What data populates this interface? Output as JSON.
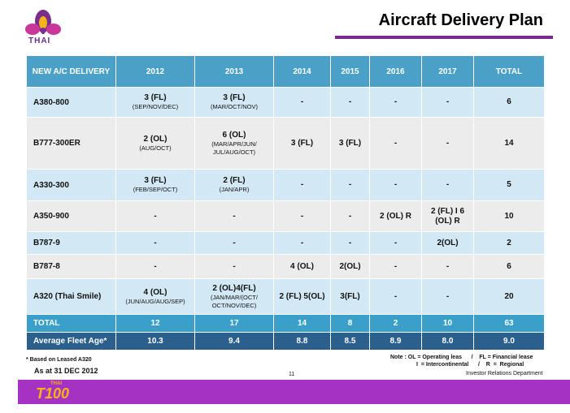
{
  "brand": {
    "logo_text": "THAI",
    "footer_brand": "T100",
    "footer_mini": "THAI"
  },
  "header": {
    "title": "Aircraft Delivery Plan"
  },
  "table": {
    "headers": [
      "NEW A/C DELIVERY",
      "2012",
      "2013",
      "2014",
      "2015",
      "2016",
      "2017",
      "TOTAL"
    ],
    "rows": [
      {
        "label": "A380-800",
        "cells": [
          {
            "main": "3 (FL)",
            "sub": "(SEP/NOV/DEC)"
          },
          {
            "main": "3 (FL)",
            "sub": "(MAR/OCT/NOV)"
          },
          {
            "main": "-",
            "sub": ""
          },
          {
            "main": "-",
            "sub": ""
          },
          {
            "main": "-",
            "sub": ""
          },
          {
            "main": "-",
            "sub": ""
          },
          {
            "main": "6",
            "sub": ""
          }
        ]
      },
      {
        "label": "B777-300ER",
        "cells": [
          {
            "main": "2 (OL)",
            "sub": "(AUG/OCT)"
          },
          {
            "main": "6 (OL)",
            "sub": "(MAR/APR/JUN/ JUL/AUG/OCT)"
          },
          {
            "main": "3 (FL)",
            "sub": ""
          },
          {
            "main": "3 (FL)",
            "sub": ""
          },
          {
            "main": "-",
            "sub": ""
          },
          {
            "main": "-",
            "sub": ""
          },
          {
            "main": "14",
            "sub": ""
          }
        ]
      },
      {
        "label": "A330-300",
        "cells": [
          {
            "main": "3 (FL)",
            "sub": "(FEB/SEP/OCT)"
          },
          {
            "main": "2 (FL)",
            "sub": "(JAN/APR)"
          },
          {
            "main": "-",
            "sub": ""
          },
          {
            "main": "-",
            "sub": ""
          },
          {
            "main": "-",
            "sub": ""
          },
          {
            "main": "-",
            "sub": ""
          },
          {
            "main": "5",
            "sub": ""
          }
        ]
      },
      {
        "label": "A350-900",
        "cells": [
          {
            "main": "-",
            "sub": ""
          },
          {
            "main": "-",
            "sub": ""
          },
          {
            "main": "-",
            "sub": ""
          },
          {
            "main": "-",
            "sub": ""
          },
          {
            "main": "2 (OL) R",
            "sub": ""
          },
          {
            "main": "2 (FL) I 6 (OL) R",
            "sub": ""
          },
          {
            "main": "10",
            "sub": ""
          }
        ]
      },
      {
        "label": "B787-9",
        "cells": [
          {
            "main": "-",
            "sub": ""
          },
          {
            "main": "-",
            "sub": ""
          },
          {
            "main": "-",
            "sub": ""
          },
          {
            "main": "-",
            "sub": ""
          },
          {
            "main": "-",
            "sub": ""
          },
          {
            "main": "2(OL)",
            "sub": ""
          },
          {
            "main": "2",
            "sub": ""
          }
        ]
      },
      {
        "label": "B787-8",
        "cells": [
          {
            "main": "-",
            "sub": ""
          },
          {
            "main": "-",
            "sub": ""
          },
          {
            "main": "4 (OL)",
            "sub": ""
          },
          {
            "main": "2(OL)",
            "sub": ""
          },
          {
            "main": "-",
            "sub": ""
          },
          {
            "main": "-",
            "sub": ""
          },
          {
            "main": "6",
            "sub": ""
          }
        ]
      },
      {
        "label": "A320 (Thai Smile)",
        "cells": [
          {
            "main": "4 (OL)",
            "sub": "(JUN/AUG/AUG/SEP)"
          },
          {
            "main": "2 (OL)4(FL)",
            "sub": "(JAN/MAR/(OCT/ OCT/NOV/DEC)"
          },
          {
            "main": "2 (FL) 5(OL)",
            "sub": ""
          },
          {
            "main": "3(FL)",
            "sub": ""
          },
          {
            "main": "-",
            "sub": ""
          },
          {
            "main": "-",
            "sub": ""
          },
          {
            "main": "20",
            "sub": ""
          }
        ]
      }
    ],
    "total": {
      "label": "TOTAL",
      "values": [
        "12",
        "17",
        "14",
        "8",
        "2",
        "10",
        "63"
      ]
    },
    "avg": {
      "label": "Average Fleet Age*",
      "values": [
        "10.3",
        "9.4",
        "8.8",
        "8.5",
        "8.9",
        "8.0",
        "9.0"
      ]
    }
  },
  "footer": {
    "footnote": "* Based on Leased A320",
    "as_at": "As at 31 DEC 2012",
    "page": "11",
    "note_line1": "Note : OL = Operating leas      /    FL = Financial lease",
    "note_line2": "I  = Intercontinental      /    R  =  Regional",
    "department": "Investor Relations Department"
  },
  "colors": {
    "header_blue": "#4aa0c6",
    "row_light_blue": "#d3e8f5",
    "row_gray": "#ececec",
    "total_blue": "#3ba0c9",
    "avg_navy": "#2b5f8c",
    "brand_purple": "#a632c3"
  },
  "icons": {
    "logo": "thai-airways-orchid-icon"
  }
}
